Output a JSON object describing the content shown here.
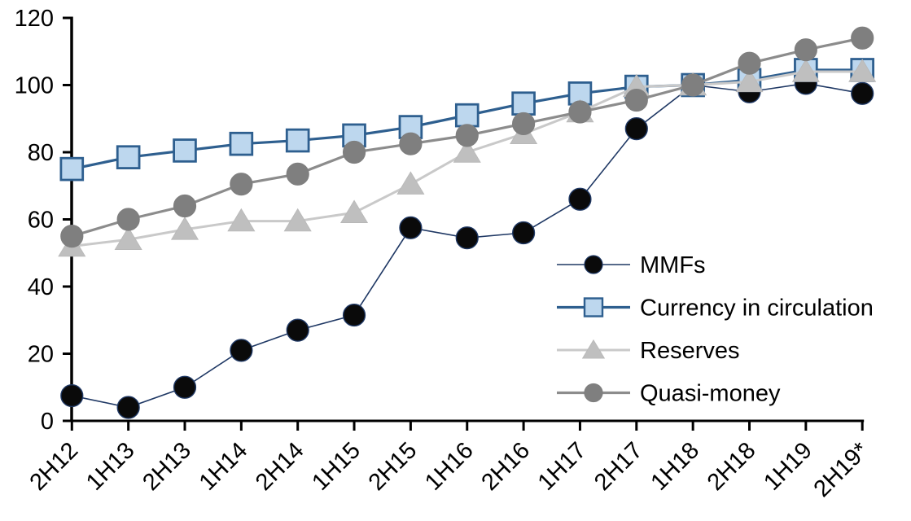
{
  "chart_data": {
    "type": "line",
    "title": "",
    "xlabel": "",
    "ylabel": "",
    "categories": [
      "2H12",
      "1H13",
      "2H13",
      "1H14",
      "2H14",
      "1H15",
      "2H15",
      "1H16",
      "2H16",
      "1H17",
      "2H17",
      "1H18",
      "2H18",
      "1H19",
      "2H19*"
    ],
    "yticks": [
      0,
      20,
      40,
      60,
      80,
      100,
      120
    ],
    "ylim": [
      0,
      120
    ],
    "grid": false,
    "legend_position": "inside-right",
    "background_color": "#FFFFFF",
    "axis_color": "#000000",
    "series": [
      {
        "name": "MMFs",
        "marker": "circle",
        "marker_fill": "#0A0A0A",
        "marker_stroke": "#1F3864",
        "line_color": "#1F3864",
        "line_width": 1.6,
        "values": [
          7.5,
          4,
          10,
          21,
          27,
          31.5,
          57.5,
          54.5,
          56,
          66,
          87,
          100,
          98,
          100.5,
          97.5
        ]
      },
      {
        "name": "Currency in circulation",
        "marker": "square",
        "marker_fill": "#BDD7EE",
        "marker_stroke": "#2E5F8F",
        "line_color": "#2E5F8F",
        "line_width": 3.2,
        "values": [
          75,
          78.5,
          80.5,
          82.5,
          83.5,
          85,
          87.5,
          91,
          94.5,
          97.5,
          99.5,
          100,
          101.5,
          104.5,
          104.5
        ]
      },
      {
        "name": "Reserves",
        "marker": "triangle",
        "marker_fill": "#BFBFBF",
        "marker_stroke": "#B8B8B8",
        "line_color": "#C9C9C9",
        "line_width": 3,
        "values": [
          52,
          54,
          57,
          59.5,
          59.5,
          62,
          70.5,
          80,
          85.5,
          92,
          99.5,
          100,
          101,
          104,
          104
        ]
      },
      {
        "name": "Quasi-money",
        "marker": "circle",
        "marker_fill": "#7F7F7F",
        "marker_stroke": "#7F7F7F",
        "line_color": "#8C8C8C",
        "line_width": 3.2,
        "values": [
          55,
          60,
          64,
          70.5,
          73.5,
          80,
          82.5,
          85,
          88.5,
          92,
          95.5,
          100,
          106.5,
          110.5,
          114
        ]
      }
    ]
  }
}
